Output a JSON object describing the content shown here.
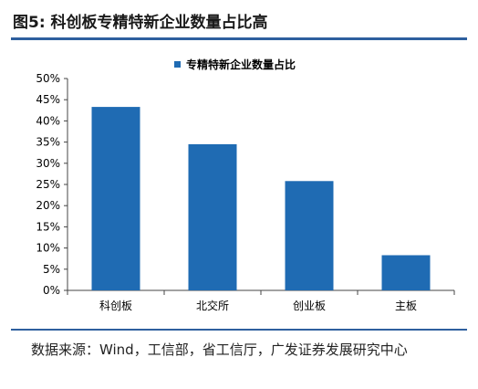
{
  "header": {
    "title": "图5:  科创板专精特新企业数量占比高"
  },
  "footer": {
    "source": "数据来源：Wind，工信部，省工信厅，广发证券发展研究中心"
  },
  "colors": {
    "bar": "#1f6bb3",
    "rule": "#2e5f9e",
    "axis": "#444444"
  },
  "chart_data": {
    "type": "bar",
    "categories": [
      "科创板",
      "北交所",
      "创业板",
      "主板"
    ],
    "series": [
      {
        "name": "专精特新企业数量占比",
        "values": [
          43.3,
          34.5,
          25.8,
          8.3
        ]
      }
    ],
    "ylim": [
      0,
      50
    ],
    "yticks": [
      0,
      5,
      10,
      15,
      20,
      25,
      30,
      35,
      40,
      45,
      50
    ],
    "ytick_labels": [
      "0%",
      "5%",
      "10%",
      "15%",
      "20%",
      "25%",
      "30%",
      "35%",
      "40%",
      "45%",
      "50%"
    ],
    "grid": false,
    "legend_position": "top-center",
    "title": "",
    "xlabel": "",
    "ylabel": ""
  }
}
